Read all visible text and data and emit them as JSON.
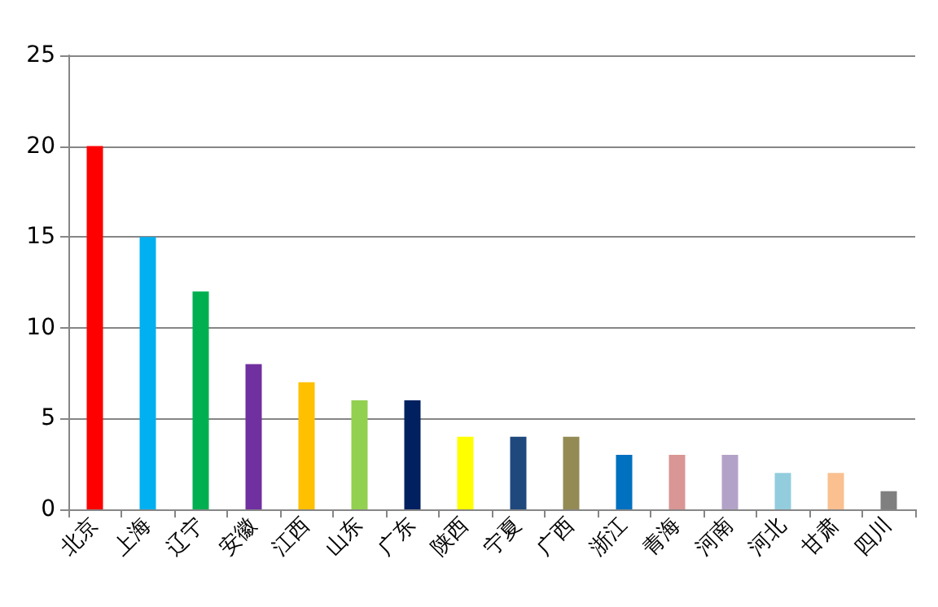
{
  "chart_data": {
    "type": "bar",
    "categories": [
      "北京",
      "上海",
      "辽宁",
      "安徽",
      "江西",
      "山东",
      "广东",
      "陕西",
      "宁夏",
      "广西",
      "浙江",
      "青海",
      "河南",
      "河北",
      "甘肃",
      "四川"
    ],
    "values": [
      20,
      15,
      12,
      8,
      7,
      6,
      6,
      4,
      4,
      4,
      3,
      3,
      3,
      2,
      2,
      1
    ],
    "colors": [
      "#ff0000",
      "#00b0f0",
      "#00b050",
      "#7030a0",
      "#ffc000",
      "#92d050",
      "#002060",
      "#ffff00",
      "#1f497d",
      "#948a54",
      "#0070c0",
      "#d99694",
      "#b3a2c7",
      "#93cddd",
      "#fac090",
      "#7f7f7f"
    ],
    "ylim": [
      0,
      25
    ],
    "yticks": [
      0,
      5,
      10,
      15,
      20,
      25
    ],
    "grid": "y"
  }
}
